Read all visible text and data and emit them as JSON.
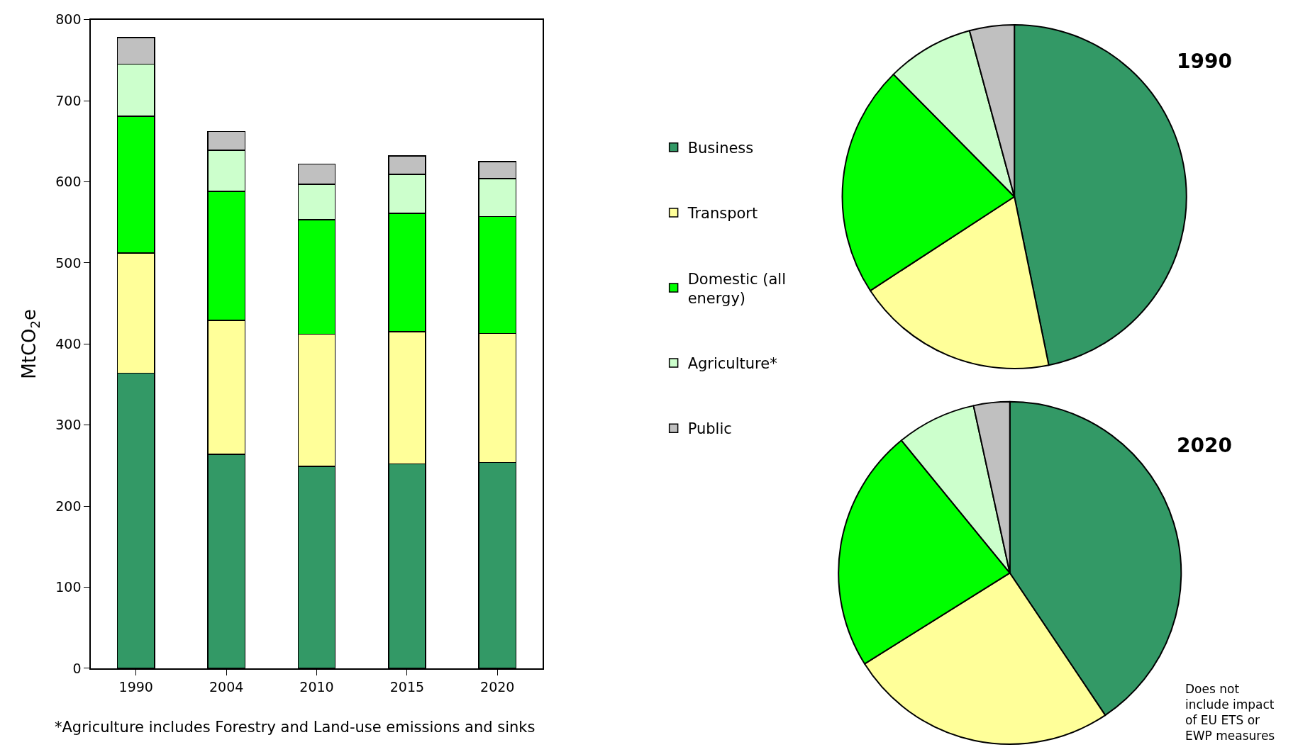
{
  "chart_data": [
    {
      "type": "bar",
      "stacked": true,
      "ylabel": "MtCO$_{2}$e",
      "categories": [
        "1990",
        "2004",
        "2010",
        "2015",
        "2020"
      ],
      "ylim": [
        0,
        800
      ],
      "yticks": [
        0,
        100,
        200,
        300,
        400,
        500,
        600,
        700,
        800
      ],
      "grid": false,
      "legend": "right",
      "series": [
        {
          "name": "Business",
          "color": "#339966",
          "values": [
            364,
            264,
            249,
            252,
            254
          ]
        },
        {
          "name": "Transport",
          "color": "#ffff99",
          "values": [
            148,
            165,
            163,
            163,
            159
          ]
        },
        {
          "name": "Domestic (all energy)",
          "color": "#00ff00",
          "values": [
            169,
            159,
            141,
            146,
            144
          ]
        },
        {
          "name": "Agriculture*",
          "color": "#ccffcc",
          "values": [
            64,
            51,
            44,
            48,
            47
          ]
        },
        {
          "name": "Public",
          "color": "#c0c0c0",
          "values": [
            33,
            23,
            25,
            23,
            21
          ]
        }
      ],
      "annotations": [
        "*Agriculture includes Forestry and Land-use emissions and sinks"
      ]
    },
    {
      "type": "pie",
      "title": "1990",
      "categories": [
        null,
        null,
        null,
        null,
        null
      ],
      "values": [
        46.8,
        19.0,
        21.8,
        8.2,
        4.2
      ],
      "colors": [
        "#339966",
        "#ffff99",
        "#00ff00",
        "#ccffcc",
        "#c0c0c0"
      ]
    },
    {
      "type": "pie",
      "title": "2020",
      "categories": [
        null,
        null,
        null,
        null,
        null
      ],
      "values": [
        40.6,
        25.5,
        23.0,
        7.5,
        3.4
      ],
      "colors": [
        "#339966",
        "#ffff99",
        "#00ff00",
        "#ccffcc",
        "#c0c0c0"
      ],
      "annotations": [
        "Does not include impact of EU ETS or EWP measures"
      ]
    }
  ]
}
